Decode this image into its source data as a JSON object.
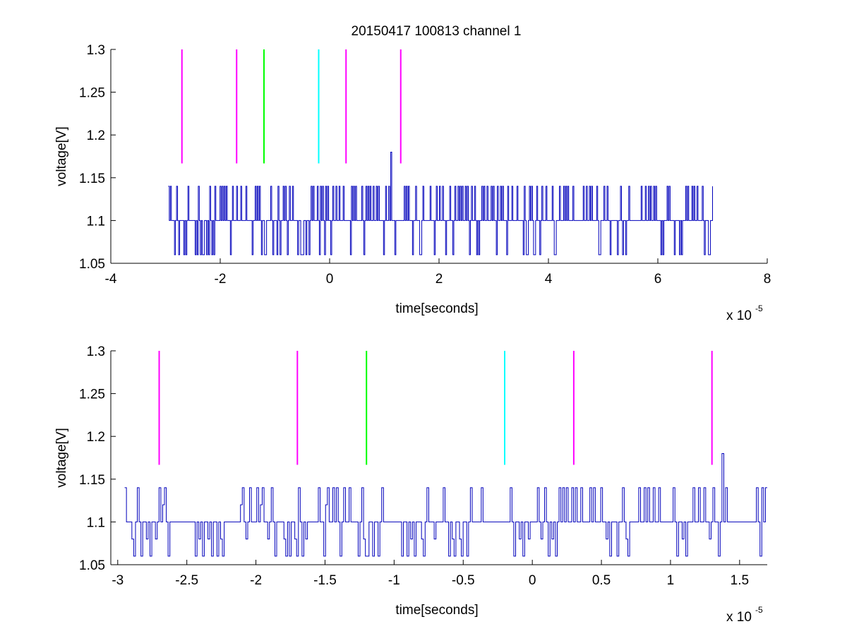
{
  "figure": {
    "title": "20150417 100813 channel 1",
    "background": "#ffffff"
  },
  "chart_data": [
    {
      "type": "line",
      "title": "20150417 100813 channel 1",
      "xlabel": "time[seconds]",
      "ylabel": "voltage[V]",
      "x_exponent_label": "x 10",
      "x_exponent": "-5",
      "xlim": [
        -4,
        8
      ],
      "ylim": [
        1.05,
        1.3
      ],
      "xticks": [
        -4,
        -2,
        0,
        2,
        4,
        6,
        8
      ],
      "xtick_labels": [
        "-4",
        "-2",
        "0",
        "2",
        "4",
        "6",
        "8"
      ],
      "yticks": [
        1.05,
        1.1,
        1.15,
        1.2,
        1.25,
        1.3
      ],
      "ytick_labels": [
        "1.05",
        "1.1",
        "1.15",
        "1.2",
        "1.25",
        "1.3"
      ],
      "grid": false,
      "markers": [
        {
          "x": -2.7,
          "color": "#ff00ff"
        },
        {
          "x": -1.7,
          "color": "#ff00ff"
        },
        {
          "x": -1.2,
          "color": "#00ff00"
        },
        {
          "x": -0.2,
          "color": "#00ffff"
        },
        {
          "x": 0.3,
          "color": "#ff00ff"
        },
        {
          "x": 1.3,
          "color": "#ff00ff"
        }
      ],
      "marker_y_range": [
        1.1667,
        1.3
      ],
      "series": [
        {
          "color": "#0000bb",
          "x_range": [
            -2.95,
            7.0
          ],
          "values": [
            1.14,
            1.1,
            1.14,
            1.1,
            1.1,
            1.1,
            1.06,
            1.1,
            1.14,
            1.1,
            1.06,
            1.1,
            1.1,
            1.1,
            1.1,
            1.06,
            1.1,
            1.06,
            1.1,
            1.14,
            1.1,
            1.1,
            1.1,
            1.1,
            1.1,
            1.1,
            1.06,
            1.1,
            1.06,
            1.14,
            1.1,
            1.06,
            1.1,
            1.06,
            1.06,
            1.1,
            1.1,
            1.06,
            1.1,
            1.06,
            1.14,
            1.1,
            1.06,
            1.1,
            1.06,
            1.14,
            1.1,
            1.1,
            1.1,
            1.1,
            1.14,
            1.1,
            1.14,
            1.1,
            1.14,
            1.1,
            1.14,
            1.1,
            1.1,
            1.1,
            1.06,
            1.1,
            1.14,
            1.1,
            1.1,
            1.1,
            1.14,
            1.1,
            1.1,
            1.1,
            1.14,
            1.1,
            1.1,
            1.1,
            1.1,
            1.14,
            1.1,
            1.1,
            1.1,
            1.1,
            1.1,
            1.06,
            1.1,
            1.1,
            1.14,
            1.1,
            1.14,
            1.1,
            1.14,
            1.1,
            1.06,
            1.1,
            1.1,
            1.06,
            1.06,
            1.1,
            1.1,
            1.1,
            1.1,
            1.14,
            1.1,
            1.06,
            1.1,
            1.1,
            1.1,
            1.06,
            1.14,
            1.1,
            1.06,
            1.1,
            1.1,
            1.14,
            1.1,
            1.14,
            1.1,
            1.06,
            1.1,
            1.14,
            1.1,
            1.1,
            1.14,
            1.1,
            1.1,
            1.1,
            1.1,
            1.06,
            1.1,
            1.1,
            1.06,
            1.06,
            1.06,
            1.1,
            1.1,
            1.06,
            1.1,
            1.1,
            1.06,
            1.1,
            1.14,
            1.1,
            1.14,
            1.1,
            1.1,
            1.1,
            1.14,
            1.1,
            1.06,
            1.14,
            1.1,
            1.14,
            1.1,
            1.06,
            1.14,
            1.1,
            1.14,
            1.1,
            1.1,
            1.06,
            1.1,
            1.14,
            1.1,
            1.1,
            1.14,
            1.1,
            1.1,
            1.14,
            1.1,
            1.1,
            1.1,
            1.14,
            1.1,
            1.1,
            1.1,
            1.1,
            1.1,
            1.1,
            1.06,
            1.14,
            1.1,
            1.14,
            1.1,
            1.14,
            1.1,
            1.1,
            1.1,
            1.1,
            1.1,
            1.14,
            1.1,
            1.06,
            1.1,
            1.14,
            1.1,
            1.14,
            1.1,
            1.14,
            1.1,
            1.1,
            1.14,
            1.1,
            1.1,
            1.14,
            1.1,
            1.14,
            1.1,
            1.1,
            1.1,
            1.1,
            1.06,
            1.1,
            1.14,
            1.1,
            1.1,
            1.14,
            1.1,
            1.18,
            1.1,
            1.1,
            1.1,
            1.06,
            1.1,
            1.1,
            1.1,
            1.1,
            1.1,
            1.1,
            1.1,
            1.1,
            1.14,
            1.1,
            1.14,
            1.1,
            1.14,
            1.1,
            1.1,
            1.1,
            1.06,
            1.1,
            1.1,
            1.14,
            1.1,
            1.1,
            1.1,
            1.06,
            1.06,
            1.1,
            1.14,
            1.1,
            1.1,
            1.1,
            1.1,
            1.1,
            1.1,
            1.14,
            1.1,
            1.1,
            1.1,
            1.06,
            1.1,
            1.14,
            1.1,
            1.1,
            1.14,
            1.1,
            1.1,
            1.14,
            1.1,
            1.1,
            1.06,
            1.1,
            1.1,
            1.1,
            1.14,
            1.1,
            1.1,
            1.06,
            1.1,
            1.14,
            1.1,
            1.1,
            1.14,
            1.1,
            1.14,
            1.1,
            1.14,
            1.1,
            1.1,
            1.14,
            1.1,
            1.14,
            1.1,
            1.06,
            1.1,
            1.14,
            1.1,
            1.1,
            1.14,
            1.1,
            1.06,
            1.1,
            1.06,
            1.1,
            1.1,
            1.14,
            1.1,
            1.14,
            1.1,
            1.1,
            1.14,
            1.1,
            1.1,
            1.1,
            1.14,
            1.1,
            1.14,
            1.1,
            1.1,
            1.06,
            1.14,
            1.1,
            1.1,
            1.14,
            1.1,
            1.14,
            1.1,
            1.1,
            1.1,
            1.06,
            1.14,
            1.1,
            1.1,
            1.1,
            1.14,
            1.1,
            1.1,
            1.1,
            1.1,
            1.14,
            1.1,
            1.1,
            1.1,
            1.1,
            1.1,
            1.06,
            1.14,
            1.1,
            1.06,
            1.06,
            1.1,
            1.14,
            1.1,
            1.14,
            1.1,
            1.06,
            1.06,
            1.1,
            1.14,
            1.1,
            1.1,
            1.06,
            1.1,
            1.14,
            1.1,
            1.1,
            1.1,
            1.14,
            1.1,
            1.1,
            1.1,
            1.1,
            1.1,
            1.14,
            1.1,
            1.06,
            1.06,
            1.1,
            1.1,
            1.1,
            1.14,
            1.1,
            1.1,
            1.1,
            1.14,
            1.1,
            1.14,
            1.1,
            1.14,
            1.1,
            1.1,
            1.1,
            1.1,
            1.14,
            1.1,
            1.1,
            1.1,
            1.1,
            1.1,
            1.1,
            1.1,
            1.1,
            1.1,
            1.14,
            1.1,
            1.1,
            1.14,
            1.1,
            1.1,
            1.14,
            1.1,
            1.14,
            1.1,
            1.1,
            1.1,
            1.1,
            1.14,
            1.1,
            1.06,
            1.06,
            1.1,
            1.1,
            1.1,
            1.14,
            1.1,
            1.1,
            1.14,
            1.1,
            1.1,
            1.06,
            1.1,
            1.1,
            1.1,
            1.1,
            1.1,
            1.1,
            1.06,
            1.1,
            1.1,
            1.14,
            1.1,
            1.06,
            1.1,
            1.1,
            1.06,
            1.1,
            1.1,
            1.14,
            1.1,
            1.1,
            1.1,
            1.1,
            1.1,
            1.1,
            1.1,
            1.1,
            1.1,
            1.1,
            1.1,
            1.14,
            1.1,
            1.1,
            1.1,
            1.14,
            1.1,
            1.1,
            1.14,
            1.1,
            1.14,
            1.1,
            1.1,
            1.14,
            1.1,
            1.14,
            1.1,
            1.1,
            1.1,
            1.1,
            1.06,
            1.1,
            1.06,
            1.1,
            1.1,
            1.1,
            1.14,
            1.1,
            1.14,
            1.1,
            1.1,
            1.1,
            1.1,
            1.06,
            1.1,
            1.1,
            1.1,
            1.1,
            1.06,
            1.1,
            1.06,
            1.1,
            1.1,
            1.1,
            1.14,
            1.1,
            1.14,
            1.1,
            1.1,
            1.1,
            1.14,
            1.1,
            1.14,
            1.1,
            1.1,
            1.14,
            1.1,
            1.1,
            1.1,
            1.1,
            1.14,
            1.1,
            1.06,
            1.1,
            1.1,
            1.1,
            1.06,
            1.06,
            1.1,
            1.1,
            1.14
          ]
        }
      ]
    },
    {
      "type": "line",
      "title": "",
      "xlabel": "time[seconds]",
      "ylabel": "voltage[V]",
      "x_exponent_label": "x 10",
      "x_exponent": "-5",
      "xlim": [
        -3.05,
        1.7
      ],
      "ylim": [
        1.05,
        1.3
      ],
      "xticks": [
        -3,
        -2.5,
        -2,
        -1.5,
        -1,
        -0.5,
        0,
        0.5,
        1,
        1.5
      ],
      "xtick_labels": [
        "-3",
        "-2.5",
        "-2",
        "-1.5",
        "-1",
        "-0.5",
        "0",
        "0.5",
        "1",
        "1.5"
      ],
      "yticks": [
        1.05,
        1.1,
        1.15,
        1.2,
        1.25,
        1.3
      ],
      "ytick_labels": [
        "1.05",
        "1.1",
        "1.15",
        "1.2",
        "1.25",
        "1.3"
      ],
      "grid": false,
      "markers": [
        {
          "x": -2.7,
          "color": "#ff00ff"
        },
        {
          "x": -1.7,
          "color": "#ff00ff"
        },
        {
          "x": -1.2,
          "color": "#00ff00"
        },
        {
          "x": -0.2,
          "color": "#00ffff"
        },
        {
          "x": 0.3,
          "color": "#ff00ff"
        },
        {
          "x": 1.3,
          "color": "#ff00ff"
        }
      ],
      "marker_y_range": [
        1.1667,
        1.3
      ],
      "series": [
        {
          "color": "#0000bb",
          "x_range": [
            -2.95,
            1.7
          ],
          "values": [
            1.14,
            1.1,
            1.1,
            1.1,
            1.08,
            1.06,
            1.1,
            1.14,
            1.1,
            1.06,
            1.1,
            1.1,
            1.08,
            1.1,
            1.06,
            1.1,
            1.1,
            1.08,
            1.1,
            1.14,
            1.1,
            1.12,
            1.14,
            1.1,
            1.06,
            1.1,
            1.1,
            1.1,
            1.1,
            1.1,
            1.1,
            1.1,
            1.1,
            1.1,
            1.1,
            1.1,
            1.1,
            1.1,
            1.1,
            1.06,
            1.1,
            1.08,
            1.1,
            1.06,
            1.1,
            1.1,
            1.08,
            1.1,
            1.06,
            1.1,
            1.1,
            1.06,
            1.1,
            1.08,
            1.06,
            1.1,
            1.1,
            1.1,
            1.1,
            1.1,
            1.1,
            1.1,
            1.1,
            1.1,
            1.12,
            1.14,
            1.1,
            1.08,
            1.1,
            1.14,
            1.1,
            1.1,
            1.1,
            1.14,
            1.1,
            1.12,
            1.14,
            1.1,
            1.1,
            1.08,
            1.1,
            1.14,
            1.1,
            1.06,
            1.1,
            1.1,
            1.1,
            1.1,
            1.08,
            1.06,
            1.1,
            1.06,
            1.1,
            1.1,
            1.08,
            1.06,
            1.14,
            1.1,
            1.06,
            1.1,
            1.08,
            1.1,
            1.1,
            1.1,
            1.1,
            1.1,
            1.1,
            1.14,
            1.1,
            1.1,
            1.06,
            1.12,
            1.14,
            1.1,
            1.1,
            1.14,
            1.1,
            1.14,
            1.1,
            1.06,
            1.1,
            1.14,
            1.1,
            1.1,
            1.14,
            1.1,
            1.1,
            1.1,
            1.1,
            1.06,
            1.1,
            1.14,
            1.08,
            1.06,
            1.06,
            1.1,
            1.1,
            1.06,
            1.1,
            1.1,
            1.06,
            1.1,
            1.14,
            1.1,
            1.1,
            1.1,
            1.1,
            1.1,
            1.1,
            1.1,
            1.1,
            1.1,
            1.1,
            1.06,
            1.1,
            1.1,
            1.06,
            1.1,
            1.08,
            1.1,
            1.06,
            1.1,
            1.1,
            1.1,
            1.08,
            1.06,
            1.1,
            1.14,
            1.1,
            1.1,
            1.1,
            1.08,
            1.1,
            1.1,
            1.1,
            1.1,
            1.14,
            1.1,
            1.1,
            1.06,
            1.1,
            1.08,
            1.06,
            1.1,
            1.1,
            1.08,
            1.06,
            1.1,
            1.1,
            1.06,
            1.1,
            1.14,
            1.1,
            1.1,
            1.1,
            1.1,
            1.1,
            1.14,
            1.1,
            1.1,
            1.1,
            1.1,
            1.1,
            1.1,
            1.1,
            1.1,
            1.1,
            1.1,
            1.1,
            1.1,
            1.1,
            1.1,
            1.1,
            1.14,
            1.1,
            1.06,
            1.1,
            1.1,
            1.08,
            1.1,
            1.06,
            1.1,
            1.1,
            1.08,
            1.1,
            1.1,
            1.1,
            1.1,
            1.14,
            1.1,
            1.08,
            1.1,
            1.14,
            1.1,
            1.06,
            1.1,
            1.08,
            1.1,
            1.06,
            1.1,
            1.14,
            1.1,
            1.14,
            1.1,
            1.14,
            1.1,
            1.1,
            1.14,
            1.1,
            1.14,
            1.1,
            1.1,
            1.14,
            1.1,
            1.1,
            1.1,
            1.1,
            1.14,
            1.1,
            1.14,
            1.1,
            1.1,
            1.1,
            1.14,
            1.1,
            1.1,
            1.08,
            1.1,
            1.06,
            1.1,
            1.1,
            1.1,
            1.06,
            1.1,
            1.1,
            1.14,
            1.1,
            1.08,
            1.06,
            1.1,
            1.1,
            1.1,
            1.1,
            1.1,
            1.14,
            1.1,
            1.1,
            1.14,
            1.1,
            1.14,
            1.1,
            1.1,
            1.14,
            1.1,
            1.1,
            1.14,
            1.1,
            1.1,
            1.1,
            1.1,
            1.1,
            1.1,
            1.1,
            1.14,
            1.1,
            1.06,
            1.1,
            1.1,
            1.08,
            1.1,
            1.06,
            1.1,
            1.1,
            1.1,
            1.14,
            1.1,
            1.1,
            1.14,
            1.1,
            1.1,
            1.14,
            1.1,
            1.1,
            1.08,
            1.1,
            1.14,
            1.1,
            1.1,
            1.06,
            1.1,
            1.18,
            1.1,
            1.14,
            1.1,
            1.1,
            1.1,
            1.1,
            1.1,
            1.1,
            1.1,
            1.1,
            1.1,
            1.1,
            1.1,
            1.1,
            1.1,
            1.1,
            1.1,
            1.1,
            1.14,
            1.1,
            1.06,
            1.14,
            1.1,
            1.14,
            1.14
          ]
        }
      ]
    }
  ]
}
